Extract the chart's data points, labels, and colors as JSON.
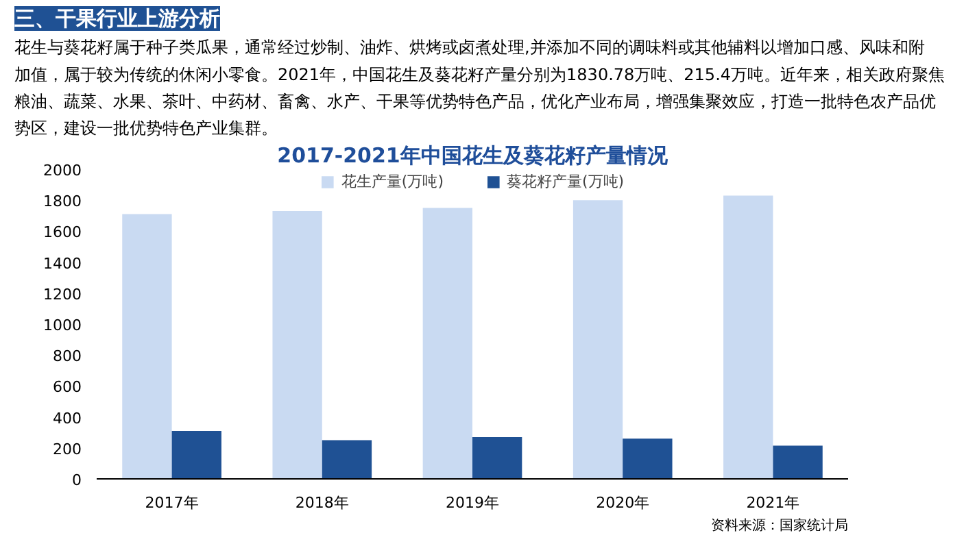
{
  "chart_data": {
    "type": "bar",
    "title": "2017-2021年中国花生及葵花籽产量情况",
    "annotations": [
      "三、干果行业上游分析",
      "花生与葵花籽属于种子类瓜果，通常经过炒制、油炸、烘烤或卤煮处理,并添加不同的调味料或其他辅料以增加口感、风味和附加值，属于较为传统的休闲小零食。2021年，中国花生及葵花籽产量分别为1830.78万吨、215.4万吨。近年来，相关政府聚焦粮油、蔬菜、水果、茶叶、中药材、畜禽、水产、干果等优势特色产品，优化产业布局，增强集聚效应，打造一批特色农产品优势区，建设一批优势特色产业集群。",
      "资料来源：国家统计局"
    ],
    "categories": [
      "2017年",
      "2018年",
      "2019年",
      "2020年",
      "2021年"
    ],
    "series": [
      {
        "name": "花生产量(万吨)",
        "color": "#c9daf2",
        "values": [
          1710,
          1730,
          1750,
          1800,
          1830
        ]
      },
      {
        "name": "葵花籽产量(万吨)",
        "color": "#1f5194",
        "values": [
          310,
          250,
          270,
          260,
          215
        ]
      }
    ],
    "ylim": [
      0,
      2000
    ],
    "yticks": [
      0,
      200,
      400,
      600,
      800,
      1000,
      1200,
      1400,
      1600,
      1800,
      2000
    ],
    "grid": false,
    "legend": "top"
  }
}
